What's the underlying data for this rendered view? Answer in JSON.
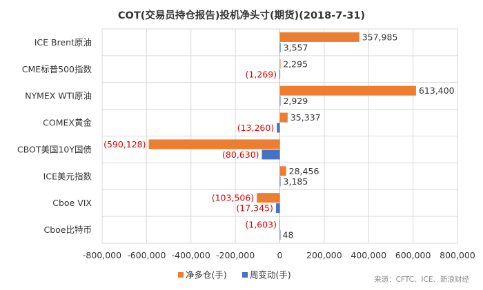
{
  "chart_data": {
    "type": "bar",
    "orientation": "horizontal",
    "title": "COT(交易员持仓报告)投机净头寸(期货)(2018-7-31)",
    "categories": [
      "ICE Brent原油",
      "CME标普500指数",
      "NYMEX WTI原油",
      "COMEX黄金",
      "CBOT美国10Y国债",
      "ICE美元指数",
      "Cboe VIX",
      "Cboe比特币"
    ],
    "series": [
      {
        "name": "净多仓(手)",
        "color": "#ED7D31",
        "values": [
          357985,
          2295,
          613400,
          35337,
          -590128,
          28456,
          -103506,
          -1603
        ],
        "labels": [
          "357,985",
          "2,295",
          "613,400",
          "35,337",
          "(590,128)",
          "28,456",
          "(103,506)",
          "(1,603)"
        ]
      },
      {
        "name": "周变动(手)",
        "color": "#4472C4",
        "values": [
          3557,
          -1269,
          2929,
          -13260,
          -80630,
          3185,
          -17345,
          48
        ],
        "labels": [
          "3,557",
          "(1,269)",
          "2,929",
          "(13,260)",
          "(80,630)",
          "3,185",
          "(17,345)",
          "48"
        ]
      }
    ],
    "xlim": [
      -800000,
      800000
    ],
    "xticks": [
      -800000,
      -600000,
      -400000,
      -200000,
      0,
      200000,
      400000,
      600000,
      800000
    ],
    "xtick_labels": [
      "-800,000",
      "-600,000",
      "-400,000",
      "-200,000",
      "0",
      "200,000",
      "400,000",
      "600,000",
      "800,000"
    ],
    "grid": true,
    "legend": "bottom",
    "negative_label_color": "#E00000",
    "positive_label_color": "#333333",
    "source": "来源：CFTC、ICE、新浪财经"
  }
}
